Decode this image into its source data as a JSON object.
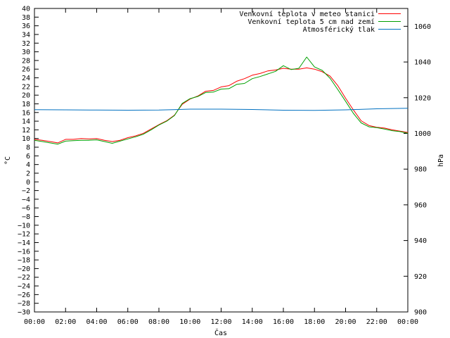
{
  "chart_data": {
    "type": "line",
    "title": "",
    "xlabel": "Čas",
    "ylabel_left": "°C",
    "ylabel_right": "hPa",
    "y_left_range": [
      -30,
      40
    ],
    "y_left_ticks": [
      "40",
      "38",
      "36",
      "34",
      "32",
      "30",
      "28",
      "26",
      "24",
      "22",
      "20",
      "18",
      "16",
      "14",
      "12",
      "10",
      "8",
      "6",
      "4",
      "2",
      "0",
      "−2",
      "−4",
      "−6",
      "−8",
      "−10",
      "−12",
      "−14",
      "−16",
      "−18",
      "−20",
      "−22",
      "−24",
      "−26",
      "−28",
      "−30"
    ],
    "y_right_range": [
      900,
      1070
    ],
    "y_right_ticks": [
      "1060",
      "1040",
      "1020",
      "1000",
      "980",
      "960",
      "940",
      "920",
      "900"
    ],
    "x_range_hours": [
      0,
      24
    ],
    "x_ticks": [
      "00:00",
      "02:00",
      "04:00",
      "06:00",
      "08:00",
      "10:00",
      "12:00",
      "14:00",
      "16:00",
      "18:00",
      "20:00",
      "22:00",
      "00:00"
    ],
    "grid": false,
    "legend_position": "top-right",
    "series": [
      {
        "name": "Venkovní teplota v meteo stanici",
        "color": "#ff0000",
        "axis": "left",
        "hours": [
          0,
          0.5,
          1,
          1.5,
          2,
          2.5,
          3,
          3.5,
          4,
          4.5,
          5,
          5.5,
          6,
          6.5,
          7,
          7.5,
          8,
          8.5,
          9,
          9.5,
          10,
          10.5,
          11,
          11.5,
          12,
          12.5,
          13,
          13.5,
          14,
          14.5,
          15,
          15.5,
          16,
          16.5,
          17,
          17.5,
          18,
          18.5,
          19,
          19.5,
          20,
          20.5,
          21,
          21.5,
          22,
          22.5,
          23,
          23.5,
          24
        ],
        "values": [
          9.8,
          9.6,
          9.3,
          9.0,
          9.8,
          9.8,
          10.0,
          9.9,
          10.0,
          9.6,
          9.3,
          9.6,
          10.2,
          10.6,
          11.2,
          12.2,
          13.2,
          14.1,
          15.4,
          17.9,
          19.1,
          19.8,
          20.9,
          21.1,
          21.9,
          22.2,
          23.2,
          23.8,
          24.6,
          25.0,
          25.6,
          25.8,
          26.2,
          26.0,
          26.0,
          26.3,
          26.0,
          25.4,
          24.4,
          22.2,
          19.3,
          16.6,
          14.1,
          13.0,
          12.6,
          12.4,
          12.0,
          11.7,
          11.4
        ]
      },
      {
        "name": "Venkovní teplota 5 cm nad zemí",
        "color": "#00a000",
        "axis": "left",
        "hours": [
          0,
          0.5,
          1,
          1.5,
          2,
          2.5,
          3,
          3.5,
          4,
          4.5,
          5,
          5.5,
          6,
          6.5,
          7,
          7.5,
          8,
          8.5,
          9,
          9.5,
          10,
          10.5,
          11,
          11.5,
          12,
          12.5,
          13,
          13.5,
          14,
          14.5,
          15,
          15.5,
          16,
          16.5,
          17,
          17.5,
          18,
          18.5,
          19,
          19.5,
          20,
          20.5,
          21,
          21.5,
          22,
          22.5,
          23,
          23.5,
          24
        ],
        "values": [
          9.6,
          9.3,
          9.0,
          8.7,
          9.4,
          9.5,
          9.6,
          9.6,
          9.7,
          9.3,
          8.9,
          9.4,
          9.9,
          10.4,
          11.0,
          12.0,
          13.1,
          14.0,
          15.3,
          18.1,
          19.2,
          19.7,
          20.6,
          20.7,
          21.4,
          21.5,
          22.5,
          22.7,
          23.8,
          24.3,
          24.9,
          25.5,
          26.8,
          25.9,
          26.2,
          28.8,
          26.5,
          25.7,
          23.9,
          21.3,
          18.6,
          15.8,
          13.6,
          12.7,
          12.5,
          12.2,
          11.8,
          11.6,
          11.2
        ]
      },
      {
        "name": "Atmosférický tlak",
        "color": "#0070c0",
        "axis": "right",
        "hours": [
          0,
          2,
          4,
          6,
          8,
          10,
          12,
          14,
          16,
          18,
          20,
          22,
          24
        ],
        "values": [
          1013.3,
          1013.2,
          1013.1,
          1013.0,
          1013.1,
          1013.6,
          1013.6,
          1013.4,
          1013.0,
          1012.9,
          1013.2,
          1013.8,
          1014.1
        ]
      }
    ]
  }
}
